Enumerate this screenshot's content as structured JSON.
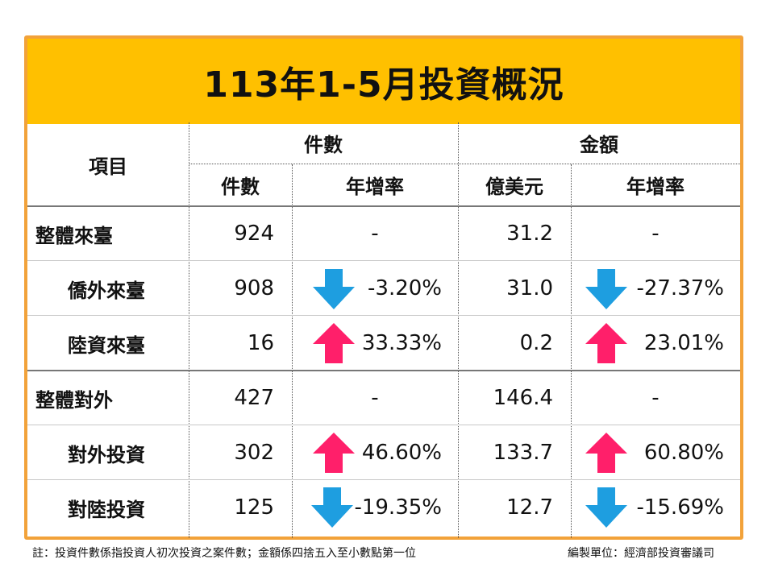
{
  "title": "113年1-5月投資概況",
  "header": {
    "item": "項目",
    "group_count": "件數",
    "group_amount": "金額",
    "sub_count": "件數",
    "sub_count_growth": "年增率",
    "sub_amount": "億美元",
    "sub_amount_growth": "年增率"
  },
  "rows": [
    {
      "label": "整體來臺",
      "count": "924",
      "count_growth": "-",
      "amount": "31.2",
      "amount_growth": "-"
    },
    {
      "label": "僑外來臺",
      "count": "908",
      "count_growth": "-3.20%",
      "amount": "31.0",
      "amount_growth": "-27.37%"
    },
    {
      "label": "陸資來臺",
      "count": "16",
      "count_growth": "33.33%",
      "amount": "0.2",
      "amount_growth": "23.01%"
    },
    {
      "label": "整體對外",
      "count": "427",
      "count_growth": "-",
      "amount": "146.4",
      "amount_growth": "-"
    },
    {
      "label": "對外投資",
      "count": "302",
      "count_growth": "46.60%",
      "amount": "133.7",
      "amount_growth": "60.80%"
    },
    {
      "label": "對陸投資",
      "count": "125",
      "count_growth": "-19.35%",
      "amount": "12.7",
      "amount_growth": "-15.69%"
    }
  ],
  "colors": {
    "up": "#ff1f6a",
    "down": "#1e9ee0",
    "title_bg": "#ffc000",
    "frame": "#f2a23a"
  },
  "footer": {
    "note": "註：投資件數係指投資人初次投資之案件數；金額係四捨五入至小數點第一位",
    "unit": "編製單位：經濟部投資審議司"
  }
}
